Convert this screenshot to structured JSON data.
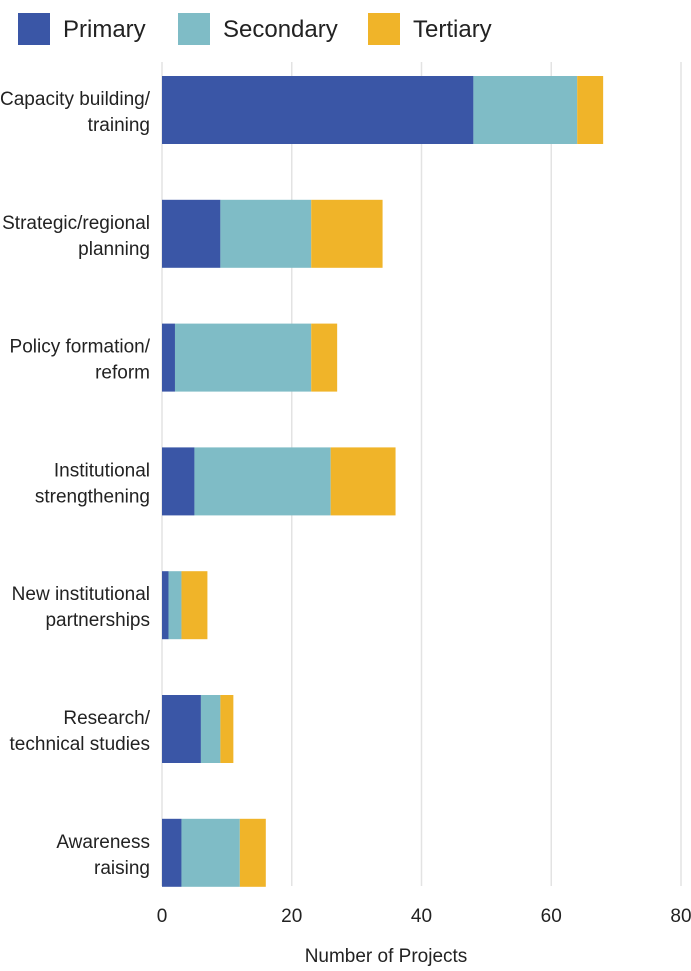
{
  "chart_data": {
    "type": "bar",
    "orientation": "horizontal",
    "stacked": true,
    "categories": [
      [
        "Capacity building/",
        "training"
      ],
      [
        "Strategic/regional",
        "planning"
      ],
      [
        "Policy formation/",
        "reform"
      ],
      [
        "Institutional",
        "strengthening"
      ],
      [
        "New institutional",
        "partnerships"
      ],
      [
        "Research/",
        "technical studies"
      ],
      [
        "Awareness",
        "raising"
      ]
    ],
    "series": [
      {
        "name": "Primary",
        "color": "#3a56a6",
        "values": [
          48,
          9,
          2,
          5,
          1,
          6,
          3
        ]
      },
      {
        "name": "Secondary",
        "color": "#7fbcc6",
        "values": [
          16,
          14,
          21,
          21,
          2,
          3,
          9
        ]
      },
      {
        "name": "Tertiary",
        "color": "#f0b429",
        "values": [
          4,
          11,
          4,
          10,
          4,
          2,
          4
        ]
      }
    ],
    "xlabel": "Number of Projects",
    "ylabel": "",
    "xlim": [
      0,
      80
    ],
    "xticks": [
      "0",
      "20",
      "40",
      "60",
      "80"
    ],
    "grid": "vertical",
    "legend": "top-left",
    "gridColor": "#e3e3e3"
  }
}
